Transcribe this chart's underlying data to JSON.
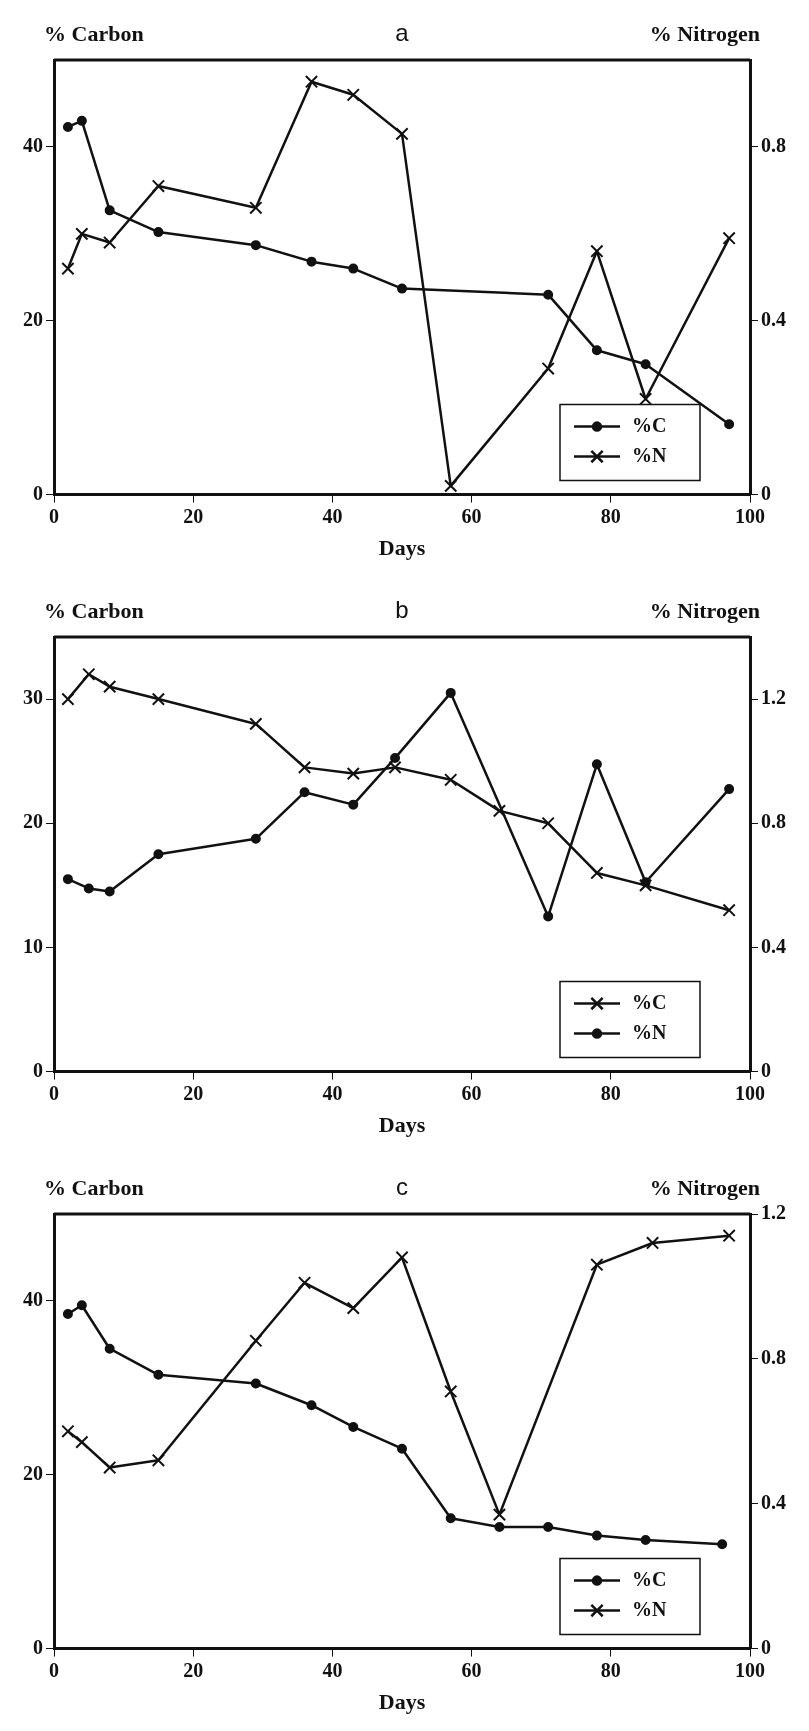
{
  "chart_data": [
    {
      "type": "line",
      "title": "a",
      "xlabel": "Days",
      "ylabel": "% Carbon",
      "y2label": "% Nitrogen",
      "xlim": [
        0,
        100
      ],
      "xticks": [
        0,
        20,
        40,
        60,
        80,
        100
      ],
      "ylim": [
        0,
        50
      ],
      "yticks": [
        0,
        20,
        40
      ],
      "y2lim": [
        0,
        1
      ],
      "y2ticks": [
        0,
        0.4,
        0.8
      ],
      "grid": false,
      "legend": "bottom right",
      "series": [
        {
          "name": "%C",
          "color": "#111111",
          "marker": "circle",
          "x": [
            2,
            4,
            8,
            15,
            29,
            37,
            43,
            50,
            71,
            78,
            85,
            97
          ],
          "values": [
            42.3,
            43,
            32.7,
            30.2,
            28.7,
            26.8,
            26,
            23.7,
            23,
            16.6,
            15,
            8.1
          ]
        },
        {
          "name": "%N",
          "color": "#111111",
          "marker": "cross",
          "axis": "y2",
          "x": [
            2,
            4,
            8,
            15,
            29,
            37,
            43,
            50,
            57,
            71,
            78,
            85,
            97
          ],
          "values": [
            0.52,
            0.6,
            0.58,
            0.71,
            0.66,
            0.95,
            0.92,
            0.83,
            0.02,
            0.29,
            0.56,
            0.22,
            0.59
          ]
        }
      ]
    },
    {
      "type": "line",
      "title": "b",
      "xlabel": "Days",
      "ylabel": "% Carbon",
      "y2label": "% Nitrogen",
      "xlim": [
        0,
        100
      ],
      "xticks": [
        0,
        20,
        40,
        60,
        80,
        100
      ],
      "ylim": [
        0,
        35
      ],
      "yticks": [
        0,
        10,
        20,
        30
      ],
      "y2lim": [
        0,
        1.4
      ],
      "y2ticks": [
        0,
        0.4,
        0.8,
        1.2
      ],
      "grid": false,
      "legend": "bottom right",
      "series": [
        {
          "name": "%C",
          "color": "#111111",
          "marker": "cross",
          "x": [
            2,
            5,
            8,
            15,
            29,
            36,
            43,
            49,
            57,
            64,
            71,
            78,
            85,
            97
          ],
          "values": [
            30,
            32,
            31,
            30,
            28,
            24.5,
            24,
            24.5,
            23.5,
            21,
            20,
            16,
            15,
            13
          ]
        },
        {
          "name": "%N",
          "color": "#111111",
          "marker": "circle",
          "axis": "y2",
          "x": [
            2,
            5,
            8,
            15,
            29,
            36,
            43,
            49,
            57,
            71,
            78,
            85,
            97
          ],
          "values": [
            0.62,
            0.59,
            0.58,
            0.7,
            0.75,
            0.9,
            0.86,
            1.01,
            1.22,
            0.5,
            0.99,
            0.61,
            0.91
          ]
        }
      ]
    },
    {
      "type": "line",
      "title": "c",
      "xlabel": "Days",
      "ylabel": "% Carbon",
      "y2label": "% Nitrogen",
      "xlim": [
        0,
        100
      ],
      "xticks": [
        0,
        20,
        40,
        60,
        80,
        100
      ],
      "ylim": [
        0,
        50
      ],
      "yticks": [
        0,
        20,
        40
      ],
      "y2lim": [
        0,
        1.2
      ],
      "y2ticks": [
        0,
        0.4,
        0.8,
        1.2
      ],
      "grid": false,
      "legend": "bottom right",
      "series": [
        {
          "name": "%C",
          "color": "#111111",
          "marker": "circle",
          "x": [
            2,
            4,
            8,
            15,
            29,
            37,
            43,
            50,
            57,
            64,
            71,
            78,
            85,
            96
          ],
          "values": [
            38.5,
            39.5,
            34.5,
            31.5,
            30.5,
            28,
            25.5,
            23,
            15,
            14,
            14,
            13,
            12.5,
            12
          ]
        },
        {
          "name": "%N",
          "color": "#111111",
          "marker": "cross",
          "axis": "y2",
          "x": [
            2,
            4,
            8,
            15,
            29,
            36,
            43,
            50,
            57,
            64,
            78,
            86,
            97
          ],
          "values": [
            0.6,
            0.57,
            0.5,
            0.52,
            0.85,
            1.01,
            0.94,
            1.08,
            0.71,
            0.37,
            1.06,
            1.12,
            1.14
          ]
        }
      ]
    }
  ]
}
